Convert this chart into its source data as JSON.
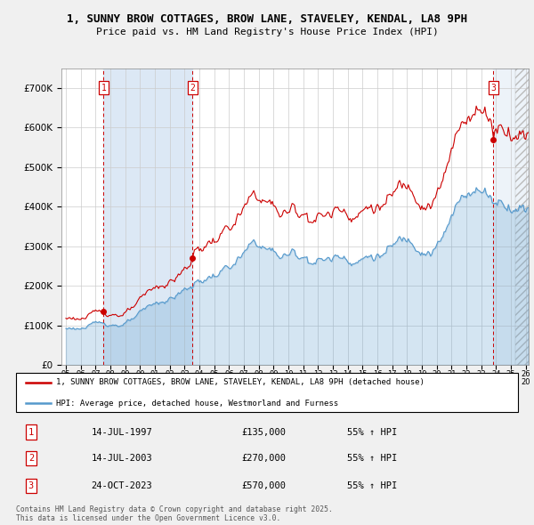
{
  "title_line1": "1, SUNNY BROW COTTAGES, BROW LANE, STAVELEY, KENDAL, LA8 9PH",
  "title_line2": "Price paid vs. HM Land Registry's House Price Index (HPI)",
  "ylim": [
    0,
    750000
  ],
  "yticks": [
    0,
    100000,
    200000,
    300000,
    400000,
    500000,
    600000,
    700000
  ],
  "ytick_labels": [
    "£0",
    "£100K",
    "£200K",
    "£300K",
    "£400K",
    "£500K",
    "£600K",
    "£700K"
  ],
  "xlim_start": 1994.7,
  "xlim_end": 2026.2,
  "sales": [
    {
      "num": 1,
      "date_num": 1997.54,
      "price": 135000,
      "date_str": "14-JUL-1997",
      "price_str": "£135,000",
      "hpi_str": "55% ↑ HPI"
    },
    {
      "num": 2,
      "date_num": 2003.54,
      "price": 270000,
      "date_str": "14-JUL-2003",
      "price_str": "£270,000",
      "hpi_str": "55% ↑ HPI"
    },
    {
      "num": 3,
      "date_num": 2023.81,
      "price": 570000,
      "date_str": "24-OCT-2023",
      "price_str": "£570,000",
      "hpi_str": "55% ↑ HPI"
    }
  ],
  "legend_line1": "1, SUNNY BROW COTTAGES, BROW LANE, STAVELEY, KENDAL, LA8 9PH (detached house)",
  "legend_line2": "HPI: Average price, detached house, Westmorland and Furness",
  "footnote": "Contains HM Land Registry data © Crown copyright and database right 2025.\nThis data is licensed under the Open Government Licence v3.0.",
  "red_color": "#cc0000",
  "blue_color": "#5599cc",
  "shade_color": "#dce8f5",
  "grid_color": "#cccccc",
  "fig_bg": "#f0f0f0",
  "plot_bg": "#ffffff"
}
